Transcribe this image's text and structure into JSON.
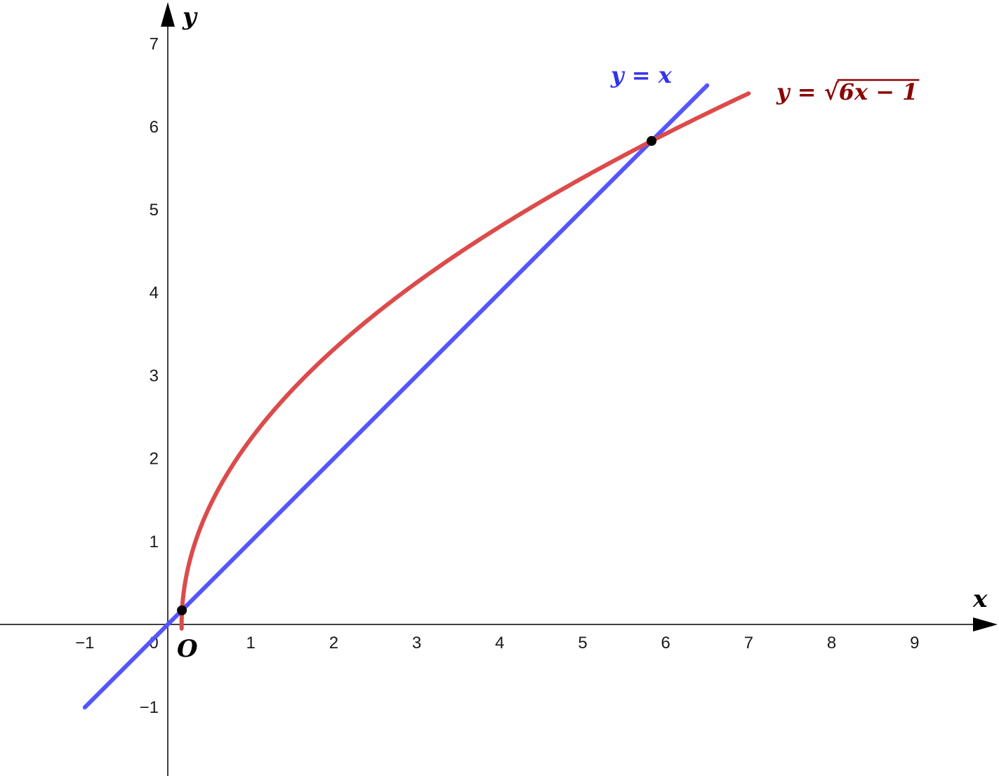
{
  "chart_data": {
    "type": "line",
    "xlabel": "x",
    "ylabel": "y",
    "origin_label": "O",
    "origin_tick": "0",
    "xlim": [
      -2,
      10
    ],
    "ylim": [
      -1.8,
      7.4
    ],
    "x_ticks": [
      -1,
      1,
      2,
      3,
      4,
      5,
      6,
      7,
      8,
      9
    ],
    "y_ticks": [
      -1,
      1,
      2,
      3,
      4,
      5,
      6,
      7
    ],
    "grid": false,
    "series": [
      {
        "name": "y = x",
        "label_parts": [
          "y",
          " = ",
          "x"
        ],
        "color": "#5555ff",
        "function": "x",
        "domain": [
          -1,
          6.5
        ]
      },
      {
        "name": "y = √(6x − 1)",
        "label_parts": [
          "y",
          " = √",
          "6x − 1"
        ],
        "color": "#dc4b4b",
        "label_color": "#8b0000",
        "function": "sqrt(6x-1)",
        "domain": [
          0.1667,
          7
        ]
      }
    ],
    "points": [
      {
        "x": 0.17,
        "y": 0.17
      },
      {
        "x": 5.83,
        "y": 5.83
      }
    ]
  }
}
